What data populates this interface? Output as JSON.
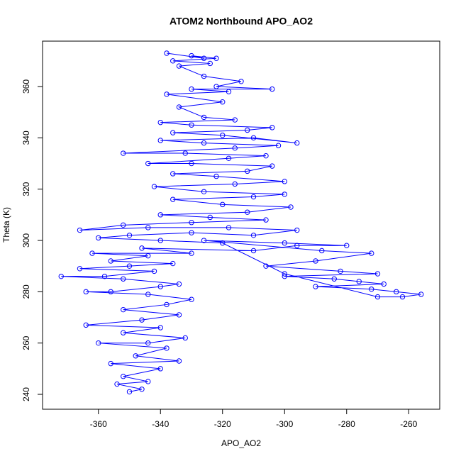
{
  "chart_data": {
    "type": "scatter",
    "lines": true,
    "title": "ATOM2 Northbound APO_AO2",
    "x_label": "APO_AO2",
    "y_label": "Theta (K)",
    "color": "#0000ff",
    "x": [
      -350,
      -346,
      -354,
      -344,
      -352,
      -340,
      -356,
      -334,
      -348,
      -338,
      -360,
      -344,
      -332,
      -352,
      -340,
      -364,
      -346,
      -334,
      -352,
      -338,
      -330,
      -344,
      -364,
      -356,
      -340,
      -334,
      -352,
      -372,
      -358,
      -342,
      -366,
      -350,
      -336,
      -356,
      -344,
      -362,
      -330,
      -346,
      -310,
      -296,
      -280,
      -300,
      -326,
      -288,
      -272,
      -290,
      -306,
      -282,
      -270,
      -300,
      -284,
      -276,
      -268,
      -290,
      -272,
      -264,
      -256,
      -262,
      -270,
      -300,
      -320,
      -340,
      -360,
      -350,
      -330,
      -310,
      -296,
      -318,
      -344,
      -366,
      -352,
      -330,
      -306,
      -324,
      -340,
      -312,
      -298,
      -320,
      -336,
      -310,
      -300,
      -326,
      -342,
      -316,
      -300,
      -322,
      -336,
      -312,
      -304,
      -330,
      -344,
      -318,
      -306,
      -332,
      -352,
      -316,
      -302,
      -326,
      -340,
      -310,
      -296,
      -320,
      -336,
      -312,
      -304,
      -330,
      -340,
      -316,
      -326,
      -334,
      -320,
      -338,
      -318,
      -330,
      -304,
      -322,
      -314,
      -326,
      -334,
      -324,
      -336,
      -322,
      -330,
      -326,
      -338
    ],
    "values": [
      241,
      242,
      244,
      245,
      247,
      250,
      252,
      253,
      255,
      258,
      260,
      260,
      262,
      264,
      266,
      267,
      269,
      271,
      273,
      275,
      277,
      279,
      280,
      280,
      282,
      283,
      285,
      286,
      286,
      288,
      289,
      290,
      291,
      292,
      294,
      295,
      295,
      297,
      296,
      298,
      298,
      299,
      300,
      296,
      295,
      292,
      290,
      288,
      287,
      286,
      285,
      284,
      283,
      282,
      281,
      280,
      279,
      278,
      278,
      287,
      299,
      300,
      301,
      302,
      303,
      302,
      304,
      305,
      305,
      304,
      306,
      307,
      308,
      309,
      310,
      311,
      313,
      314,
      316,
      317,
      318,
      319,
      321,
      322,
      323,
      325,
      326,
      327,
      329,
      330,
      330,
      332,
      333,
      334,
      334,
      336,
      337,
      338,
      339,
      340,
      338,
      341,
      342,
      343,
      344,
      345,
      346,
      347,
      348,
      352,
      354,
      357,
      358,
      359,
      359,
      360,
      362,
      364,
      368,
      369,
      370,
      371,
      372,
      371,
      373
    ],
    "xlim": [
      -378,
      -250
    ],
    "ylim": [
      234.2,
      377.7
    ],
    "xticks": [
      -360,
      -340,
      -320,
      -300,
      -280,
      -260
    ],
    "yticks": [
      240,
      260,
      280,
      300,
      320,
      340,
      360
    ]
  }
}
